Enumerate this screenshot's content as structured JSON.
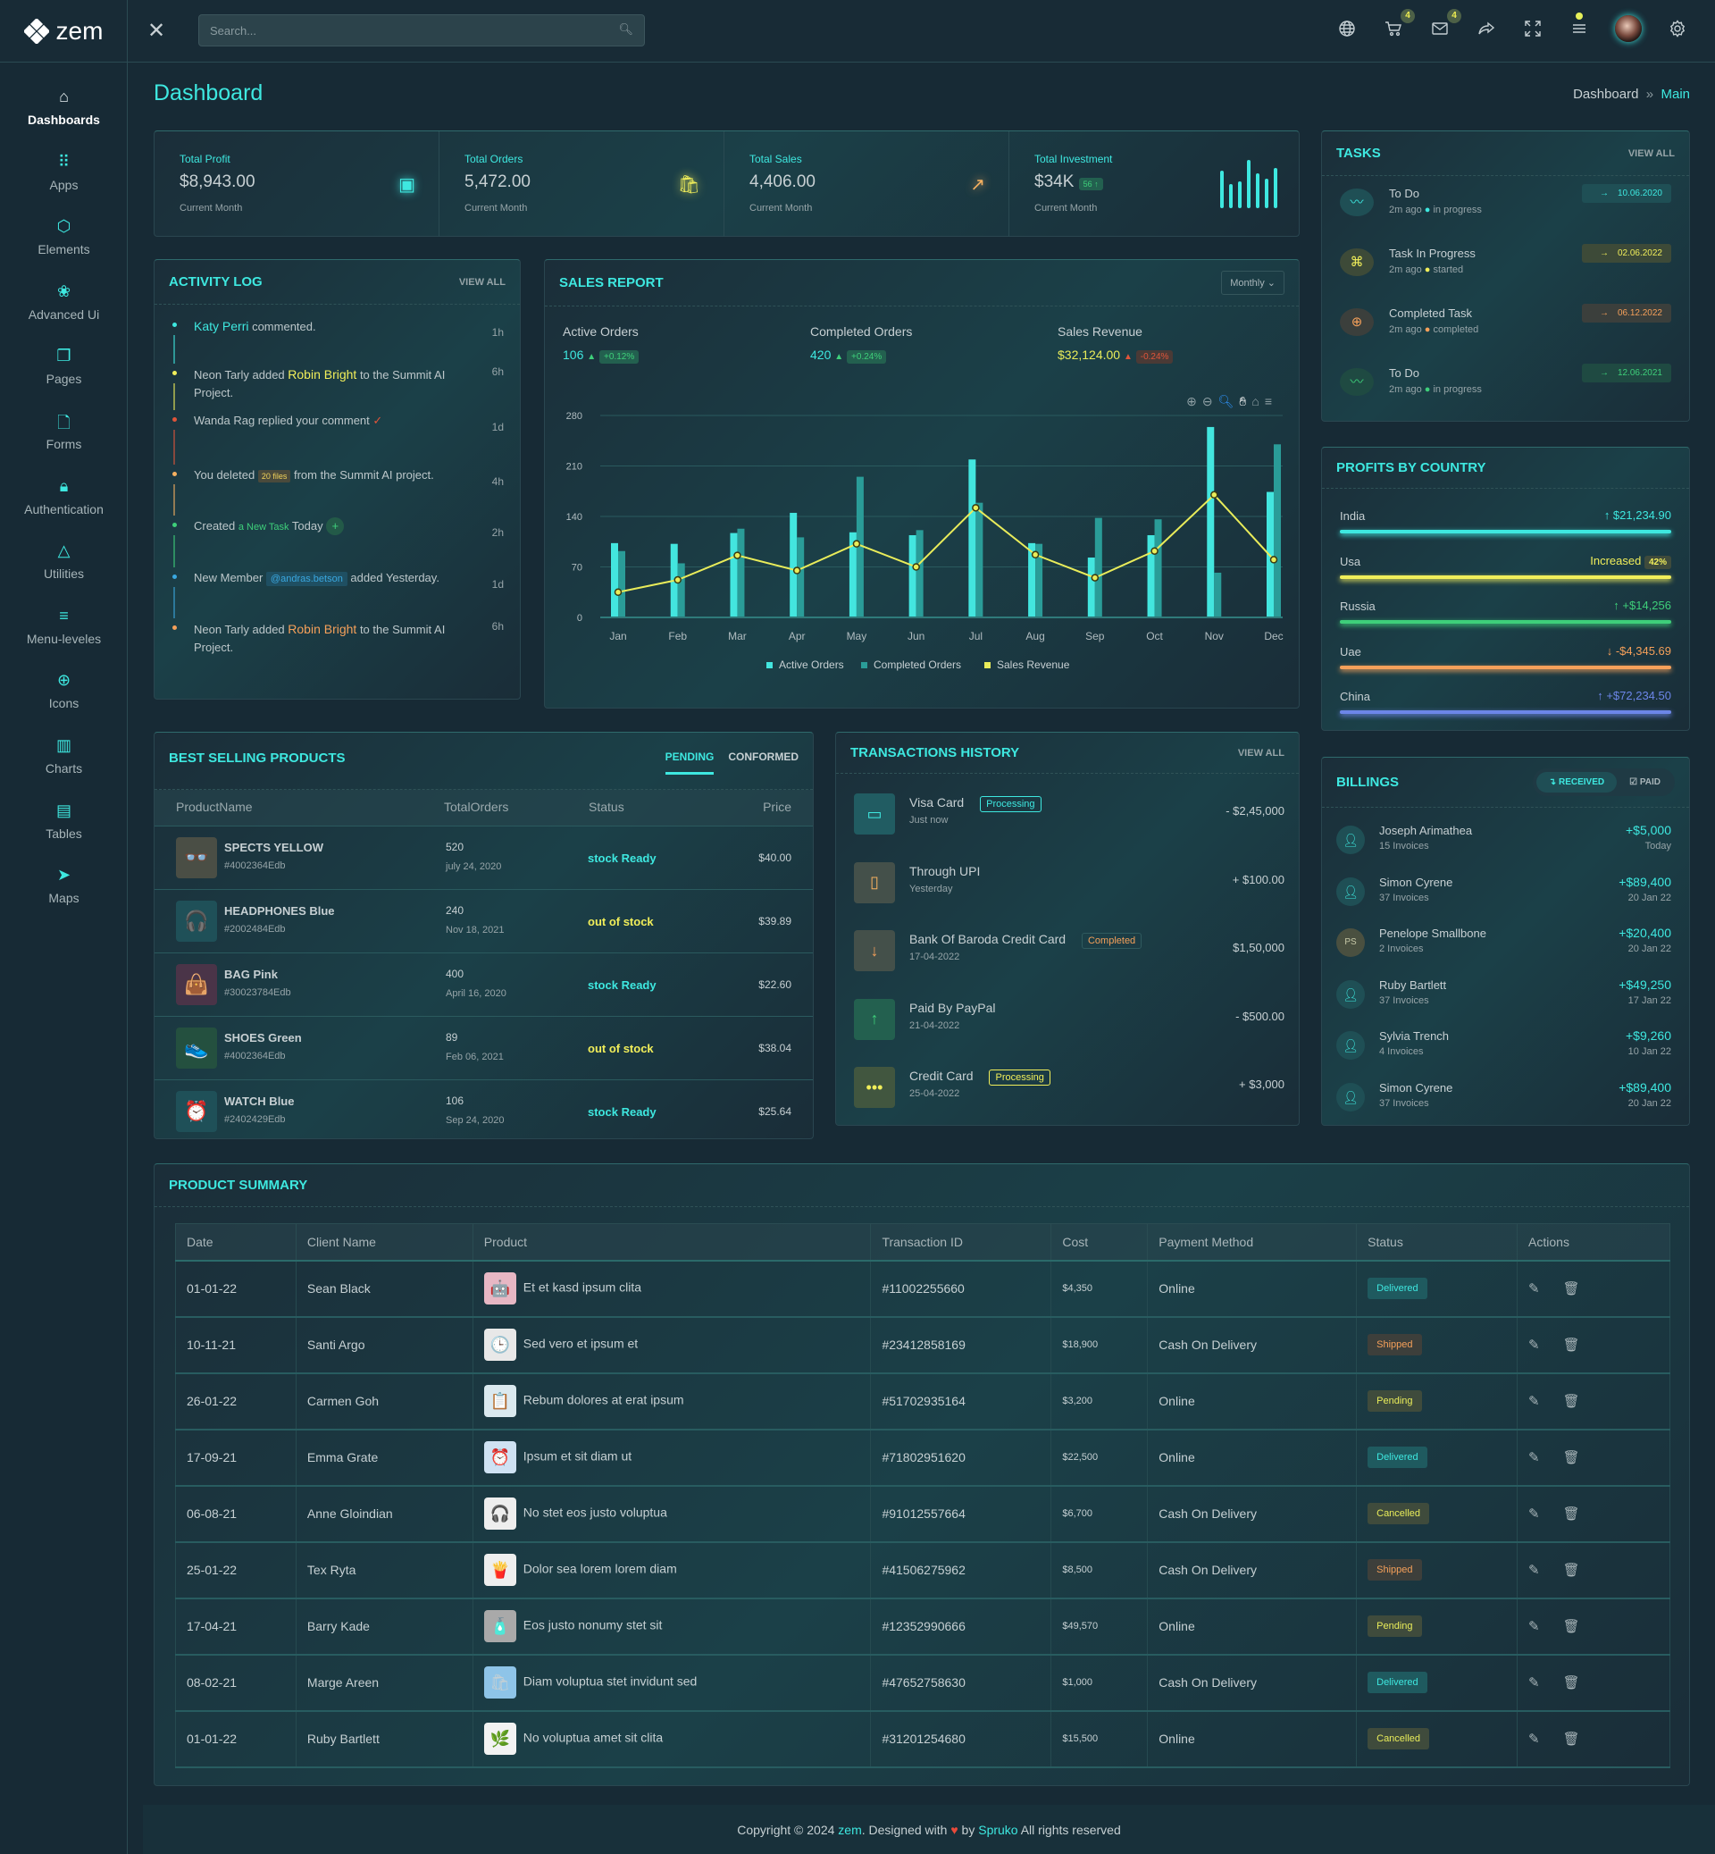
{
  "header": {
    "brand": "zem",
    "search_placeholder": "Search...",
    "cart_count": "4",
    "mail_count": "4"
  },
  "sidebar": {
    "items": [
      {
        "label": "Dashboards",
        "icon": "home"
      },
      {
        "label": "Apps",
        "icon": "grid"
      },
      {
        "label": "Elements",
        "icon": "cube"
      },
      {
        "label": "Advanced Ui",
        "icon": "circles"
      },
      {
        "label": "Pages",
        "icon": "copy"
      },
      {
        "label": "Forms",
        "icon": "file"
      },
      {
        "label": "Authentication",
        "icon": "lock"
      },
      {
        "label": "Utilities",
        "icon": "shapes"
      },
      {
        "label": "Menu-leveles",
        "icon": "menu"
      },
      {
        "label": "Icons",
        "icon": "globe"
      },
      {
        "label": "Charts",
        "icon": "bar-chart"
      },
      {
        "label": "Tables",
        "icon": "table"
      },
      {
        "label": "Maps",
        "icon": "send"
      }
    ]
  },
  "page": {
    "title": "Dashboard",
    "breadcrumb": [
      "Dashboard",
      "Main"
    ]
  },
  "stats": [
    {
      "label": "Total Profit",
      "value": "$8,943.00",
      "sub": "Current Month",
      "icon": "wallet",
      "color": "#3ee8e0"
    },
    {
      "label": "Total Orders",
      "value": "5,472.00",
      "sub": "Current Month",
      "icon": "bag",
      "color": "#f1ee5a"
    },
    {
      "label": "Total Sales",
      "value": "4,406.00",
      "sub": "Current Month",
      "icon": "trend-up",
      "color": "#f5b060"
    },
    {
      "label": "Total Investment",
      "value": "$34K",
      "badge": "56 ↑",
      "sub": "Current Month",
      "icon": "mini-bars",
      "color": "#3ee8e0",
      "mini_bars": [
        70,
        45,
        50,
        90,
        65,
        55,
        75
      ]
    }
  ],
  "activity": {
    "title": "ACTIVITY LOG",
    "view_all": "VIEW ALL",
    "items": [
      {
        "parts": [
          "Katy Perri",
          " commented."
        ],
        "time": "1h",
        "color": "#3ee8e0"
      },
      {
        "parts": [
          "Neon Tarly added ",
          "Robin Bright",
          " to the Summit AI Project."
        ],
        "time": "6h",
        "color": "#f1ee5a"
      },
      {
        "parts": [
          "Wanda Rag replied your comment"
        ],
        "time": "1d",
        "color": "#e0553a"
      },
      {
        "parts": [
          "You deleted ",
          "20 files",
          " from the Summit AI project."
        ],
        "time": "4h",
        "color": "#f5b060"
      },
      {
        "parts": [
          "Created ",
          "a New Task",
          " Today"
        ],
        "time": "2h",
        "color": "#3ecf7a"
      },
      {
        "parts": [
          "New Member ",
          "@andras.betson",
          " added Yesterday."
        ],
        "time": "1d",
        "color": "#3aa8e0"
      },
      {
        "parts": [
          "Neon Tarly added ",
          "Robin Bright",
          " to the Summit AI Project."
        ],
        "time": "6h",
        "color": "#f5a05a"
      }
    ]
  },
  "sales": {
    "title": "SALES REPORT",
    "period": "Monthly",
    "kpis": [
      {
        "label": "Active Orders",
        "value": "106",
        "change": "+0.12%"
      },
      {
        "label": "Completed Orders",
        "value": "420",
        "change": "+0.24%"
      },
      {
        "label": "Sales Revenue",
        "value": "$32,124.00",
        "change": "-0.24%"
      }
    ]
  },
  "chart_data": {
    "type": "bar",
    "categories": [
      "Jan",
      "Feb",
      "Mar",
      "Apr",
      "May",
      "Jun",
      "Jul",
      "Aug",
      "Sep",
      "Oct",
      "Nov",
      "Dec"
    ],
    "series": [
      {
        "name": "Active Orders",
        "type": "bar",
        "color": "#43e6df",
        "values": [
          103,
          102,
          117,
          145,
          118,
          114,
          219,
          103,
          83,
          114,
          264,
          174
        ]
      },
      {
        "name": "Completed Orders",
        "type": "bar",
        "color": "#2a9c98",
        "values": [
          92,
          75,
          123,
          111,
          195,
          121,
          159,
          102,
          138,
          136,
          62,
          240
        ]
      },
      {
        "name": "Sales Revenue",
        "type": "line",
        "color": "#e9ec5a",
        "values": [
          35,
          52,
          86,
          65,
          102,
          70,
          152,
          87,
          55,
          92,
          170,
          80
        ]
      }
    ],
    "yticks": [
      0,
      70,
      140,
      210,
      280
    ],
    "ylim": [
      0,
      280
    ],
    "legend": "bottom",
    "grid": true
  },
  "tasks": {
    "title": "TASKS",
    "view_all": "VIEW ALL",
    "items": [
      {
        "title": "To Do",
        "ago": "2m ago",
        "status": "in progress",
        "date": "10.06.2020",
        "color": "#3ee8e0",
        "bg": "#1f4f55",
        "icon": "pulse"
      },
      {
        "title": "Task In Progress",
        "ago": "2m ago",
        "status": "started",
        "date": "02.06.2022",
        "color": "#f1ee5a",
        "bg": "#3d4a38",
        "icon": "command"
      },
      {
        "title": "Completed Task",
        "ago": "2m ago",
        "status": "completed",
        "date": "06.12.2022",
        "color": "#f5a05a",
        "bg": "#3b3f3c",
        "icon": "globe"
      },
      {
        "title": "To Do",
        "ago": "2m ago",
        "status": "in progress",
        "date": "12.06.2021",
        "color": "#3ecf7a",
        "bg": "#1f4a42",
        "icon": "pulse"
      }
    ]
  },
  "profits": {
    "title": "PROFITS BY COUNTRY",
    "items": [
      {
        "country": "India",
        "value": "↑ $21,234.90",
        "color": "#3ee8e0",
        "fill": 100
      },
      {
        "country": "Usa",
        "value": "Increased",
        "badge": "42%",
        "color": "#f1ee5a",
        "fill": 100
      },
      {
        "country": "Russia",
        "value": "↑ +$14,256",
        "color": "#3ecf7a",
        "fill": 100
      },
      {
        "country": "Uae",
        "value": "↓ -$4,345.69",
        "color": "#f5a05a",
        "fill": 100
      },
      {
        "country": "China",
        "value": "↑ +$72,234.50",
        "color": "#6c86e8",
        "fill": 100
      }
    ]
  },
  "best": {
    "title": "BEST SELLING PRODUCTS",
    "tabs": [
      "PENDING",
      "CONFORMED"
    ],
    "headers": [
      "ProductName",
      "TotalOrders",
      "Status",
      "Price"
    ],
    "rows": [
      {
        "name": "SPECTS YELLOW",
        "code": "#4002364Edb",
        "orders": "520",
        "date": "july 24, 2020",
        "status": "stock Ready",
        "price": "$40.00",
        "thumb": "👓",
        "bg": "#4a4e45",
        "sc": "#3ee8e0"
      },
      {
        "name": "HEADPHONES Blue",
        "code": "#2002484Edb",
        "orders": "240",
        "date": "Nov 18, 2021",
        "status": "out of stock",
        "price": "$39.89",
        "thumb": "🎧",
        "bg": "#1f5058",
        "sc": "#f1ee5a"
      },
      {
        "name": "BAG Pink",
        "code": "#30023784Edb",
        "orders": "400",
        "date": "April 16, 2020",
        "status": "stock Ready",
        "price": "$22.60",
        "thumb": "👜",
        "bg": "#4a3448",
        "sc": "#3ee8e0"
      },
      {
        "name": "SHOES Green",
        "code": "#4002364Edb",
        "orders": "89",
        "date": "Feb 06, 2021",
        "status": "out of stock",
        "price": "$38.04",
        "thumb": "👟",
        "bg": "#24503f",
        "sc": "#f1ee5a"
      },
      {
        "name": "WATCH Blue",
        "code": "#2402429Edb",
        "orders": "106",
        "date": "Sep 24, 2020",
        "status": "stock Ready",
        "price": "$25.64",
        "thumb": "⏰",
        "bg": "#1f5058",
        "sc": "#3ee8e0"
      }
    ]
  },
  "transactions": {
    "title": "TRANSACTIONS HISTORY",
    "view_all": "VIEW ALL",
    "items": [
      {
        "name": "Visa Card",
        "sub": "Just now",
        "badge": "Processing",
        "amount": "- $2,45,000",
        "icon": "▭",
        "color": "#3ee8e0",
        "bg": "#215c62"
      },
      {
        "name": "Through UPI",
        "sub": "Yesterday",
        "badge": "",
        "amount": "+ $100.00",
        "icon": "▯",
        "color": "#f5b060",
        "bg": "#44504a"
      },
      {
        "name": "Bank Of Baroda Credit Card",
        "sub": "17-04-2022",
        "badge": "Completed",
        "amount": "$1,50,000",
        "icon": "↓",
        "color": "#f5a05a",
        "bg": "#44504a"
      },
      {
        "name": "Paid By PayPal",
        "sub": "21-04-2022",
        "badge": "",
        "amount": "- $500.00",
        "icon": "↑",
        "color": "#3ecf7a",
        "bg": "#23604f"
      },
      {
        "name": "Credit Card",
        "sub": "25-04-2022",
        "badge": "Processing",
        "amount": "+ $3,000",
        "icon": "•••",
        "color": "#f1ee5a",
        "bg": "#41563f"
      }
    ]
  },
  "billings": {
    "title": "BILLINGS",
    "tabs": [
      "RECEIVED",
      "PAID"
    ],
    "items": [
      {
        "name": "Joseph Arimathea",
        "sub": "15 Invoices",
        "amount": "+$5,000",
        "date": "Today",
        "initials": ""
      },
      {
        "name": "Simon Cyrene",
        "sub": "37 Invoices",
        "amount": "+$89,400",
        "date": "20 Jan 22",
        "initials": ""
      },
      {
        "name": "Penelope Smallbone",
        "sub": "2 Invoices",
        "amount": "+$20,400",
        "date": "20 Jan 22",
        "initials": "PS"
      },
      {
        "name": "Ruby Bartlett",
        "sub": "37 Invoices",
        "amount": "+$49,250",
        "date": "17 Jan 22",
        "initials": ""
      },
      {
        "name": "Sylvia Trench",
        "sub": "4 Invoices",
        "amount": "+$9,260",
        "date": "10 Jan 22",
        "initials": ""
      },
      {
        "name": "Simon Cyrene",
        "sub": "37 Invoices",
        "amount": "+$89,400",
        "date": "20 Jan 22",
        "initials": ""
      }
    ]
  },
  "summary": {
    "title": "PRODUCT SUMMARY",
    "headers": [
      "Date",
      "Client Name",
      "Product",
      "Transaction ID",
      "Cost",
      "Payment Method",
      "Status",
      "Actions"
    ],
    "rows": [
      {
        "date": "01-01-22",
        "client": "Sean Black",
        "product": "Et et kasd ipsum clita",
        "txn": "#11002255660",
        "cost": "$4,350",
        "pay": "Online",
        "status": "Delivered",
        "thumb": "🤖",
        "tb": "#e7b7c4"
      },
      {
        "date": "10-11-21",
        "client": "Santi Argo",
        "product": "Sed vero et ipsum et",
        "txn": "#23412858169",
        "cost": "$18,900",
        "pay": "Cash On Delivery",
        "status": "Shipped",
        "thumb": "🕒",
        "tb": "#e8e8e8"
      },
      {
        "date": "26-01-22",
        "client": "Carmen Goh",
        "product": "Rebum dolores at erat ipsum",
        "txn": "#51702935164",
        "cost": "$3,200",
        "pay": "Online",
        "status": "Pending",
        "thumb": "📋",
        "tb": "#dbe9ef"
      },
      {
        "date": "17-09-21",
        "client": "Emma Grate",
        "product": "Ipsum et sit diam ut",
        "txn": "#71802951620",
        "cost": "$22,500",
        "pay": "Online",
        "status": "Delivered",
        "thumb": "⏰",
        "tb": "#cfe2f3"
      },
      {
        "date": "06-08-21",
        "client": "Anne Gloindian",
        "product": "No stet eos justo voluptua",
        "txn": "#91012557664",
        "cost": "$6,700",
        "pay": "Cash On Delivery",
        "status": "Cancelled",
        "thumb": "🎧",
        "tb": "#eeeeee"
      },
      {
        "date": "25-01-22",
        "client": "Tex Ryta",
        "product": "Dolor sea lorem lorem diam",
        "txn": "#41506275962",
        "cost": "$8,500",
        "pay": "Cash On Delivery",
        "status": "Shipped",
        "thumb": "🍟",
        "tb": "#eeeeee"
      },
      {
        "date": "17-04-21",
        "client": "Barry Kade",
        "product": "Eos justo nonumy stet sit",
        "txn": "#12352990666",
        "cost": "$49,570",
        "pay": "Online",
        "status": "Pending",
        "thumb": "🧴",
        "tb": "#a9a9a9"
      },
      {
        "date": "08-02-21",
        "client": "Marge Areen",
        "product": "Diam voluptua stet invidunt sed",
        "txn": "#47652758630",
        "cost": "$1,000",
        "pay": "Cash On Delivery",
        "status": "Delivered",
        "thumb": "🛍",
        "tb": "#8ec4e8"
      },
      {
        "date": "01-01-22",
        "client": "Ruby Bartlett",
        "product": "No voluptua amet sit clita",
        "txn": "#31201254680",
        "cost": "$15,500",
        "pay": "Online",
        "status": "Cancelled",
        "thumb": "🌿",
        "tb": "#f2f2f2"
      }
    ]
  },
  "status_styles": {
    "Delivered": {
      "fg": "#3ee8e0",
      "bg": "#1f5a5f"
    },
    "Shipped": {
      "fg": "#f5a05a",
      "bg": "#3d3f3b"
    },
    "Pending": {
      "fg": "#e9ec5a",
      "bg": "#3f4b3c"
    },
    "Cancelled": {
      "fg": "#e9ec5a",
      "bg": "#3f4b3c"
    }
  },
  "footer": {
    "prefix": "Copyright © 2024 ",
    "brand": "zem",
    "mid": ". Designed with ",
    "heart": "♥",
    "by": " by ",
    "author": "Spruko",
    "suffix": " All rights reserved"
  }
}
